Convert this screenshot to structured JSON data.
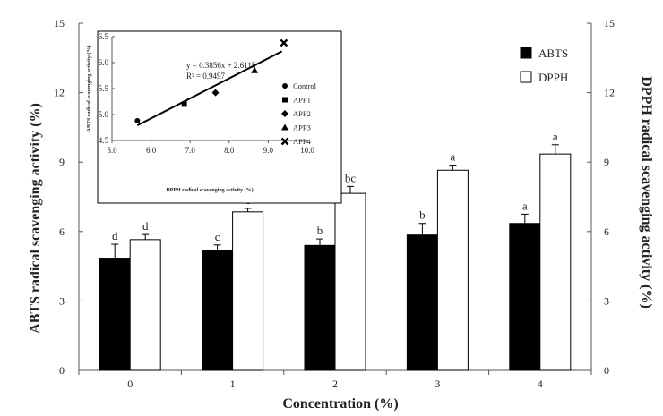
{
  "chart_data": [
    {
      "type": "bar",
      "categories": [
        "0",
        "1",
        "2",
        "3",
        "4"
      ],
      "xlabel": "Concentration (%)",
      "ylabel": "ABTS radical scavenging activity (%)",
      "y2label": "DPPH radical scavenging activity (%)",
      "ylim": [
        0,
        15
      ],
      "y2lim": [
        0,
        15
      ],
      "yticks": [
        0,
        3,
        6,
        9,
        12,
        15
      ],
      "y2ticks": [
        0,
        3,
        6,
        9,
        12,
        15
      ],
      "legend_position": "top-right",
      "series": [
        {
          "name": "ABTS",
          "color": "#000000",
          "values": [
            4.85,
            5.2,
            5.4,
            5.85,
            6.35
          ],
          "errors": [
            0.6,
            0.22,
            0.28,
            0.5,
            0.4
          ],
          "letters": [
            "d",
            "c",
            "b",
            "b",
            "a"
          ]
        },
        {
          "name": "DPPH",
          "color": "#ffffff",
          "values": [
            5.65,
            6.85,
            7.65,
            8.65,
            9.35
          ],
          "errors": [
            0.22,
            0.15,
            0.3,
            0.22,
            0.4
          ],
          "letters": [
            "d",
            "c",
            "bc",
            "a",
            "a"
          ]
        }
      ]
    },
    {
      "type": "scatter",
      "xlabel": "DPPH radical scavenging activity (%)",
      "ylabel": "ABTS radical scavenging activity (%)",
      "xlim": [
        5.0,
        10.0
      ],
      "ylim": [
        4.5,
        6.5
      ],
      "xticks": [
        "5.0",
        "6.0",
        "7.0",
        "8.0",
        "9.0",
        "10.0"
      ],
      "yticks": [
        "4.5",
        "5.0",
        "5.5",
        "6.0",
        "6.5"
      ],
      "legend_position": "right",
      "equation": "y = 0.3856x + 2.6115",
      "r_squared": "R² = 0.9497",
      "trendline": {
        "slope": 0.3856,
        "intercept": 2.6115,
        "x_range": [
          5.65,
          9.35
        ]
      },
      "points": [
        {
          "name": "Control",
          "marker": "circle",
          "x": 5.65,
          "y": 4.88
        },
        {
          "name": "APP1",
          "marker": "square",
          "x": 6.85,
          "y": 5.2
        },
        {
          "name": "APP2",
          "marker": "diamond",
          "x": 7.65,
          "y": 5.42
        },
        {
          "name": "APP3",
          "marker": "triangle",
          "x": 8.65,
          "y": 5.85
        },
        {
          "name": "APP4",
          "marker": "cross",
          "x": 9.4,
          "y": 6.38
        }
      ]
    }
  ]
}
